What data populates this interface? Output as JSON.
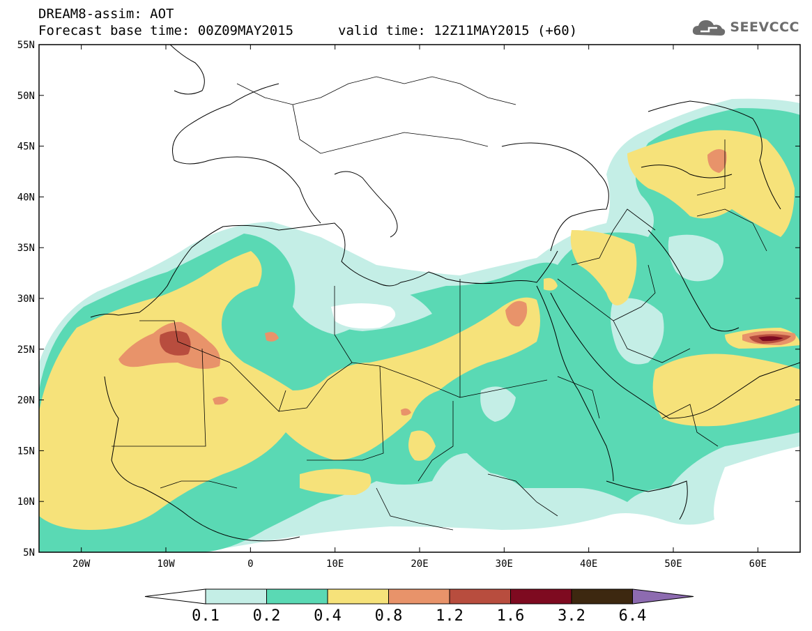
{
  "header": {
    "title": "DREAM8-assim: AOT",
    "base_label": "Forecast base time: 00Z09MAY2015",
    "valid_label": "valid time: 12Z11MAY2015 (+60)"
  },
  "logo": {
    "text": "SEEVCCC",
    "icon": "cloud-icon"
  },
  "map": {
    "lon_range": [
      -25,
      65
    ],
    "lat_range": [
      5,
      55
    ],
    "lat_ticks": [
      "5N",
      "10N",
      "15N",
      "20N",
      "25N",
      "30N",
      "35N",
      "40N",
      "45N",
      "50N",
      "55N"
    ],
    "lon_ticks": [
      "20W",
      "10W",
      "0",
      "10E",
      "20E",
      "30E",
      "40E",
      "50E",
      "60E"
    ]
  },
  "colorbar": {
    "levels": [
      "0.1",
      "0.2",
      "0.4",
      "0.8",
      "1.2",
      "1.6",
      "3.2",
      "6.4"
    ],
    "colors": [
      "#c4eee6",
      "#5ad9b4",
      "#f6e27a",
      "#e8936a",
      "#b84d3e",
      "#7e0a20",
      "#3d2810",
      "#8d6bb0"
    ]
  }
}
